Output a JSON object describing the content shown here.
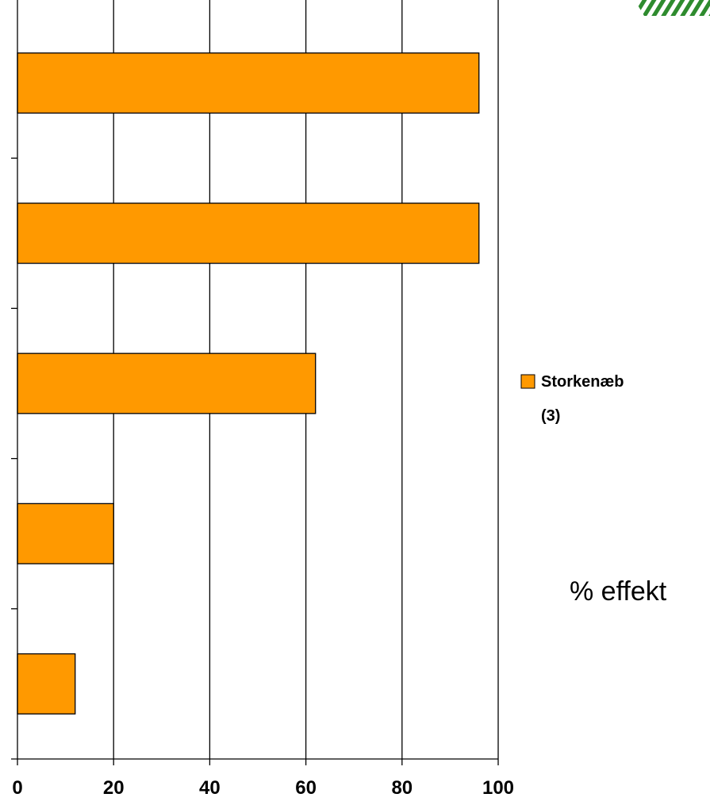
{
  "chart_data": {
    "type": "bar",
    "orientation": "horizontal",
    "categories": [
      "",
      "",
      "",
      "",
      ""
    ],
    "series": [
      {
        "name": "Storkenæb (3)",
        "values": [
          96,
          96,
          62,
          20,
          12
        ],
        "color": "#FF9900"
      }
    ],
    "xlabel": "% effekt",
    "ylabel": "",
    "xlim": [
      0,
      100
    ],
    "xticks": [
      "0",
      "20",
      "40",
      "60",
      "80",
      "100"
    ],
    "grid": "vertical",
    "legend_position": "right",
    "legend": {
      "lines": [
        "Storkenæb",
        "(3)"
      ]
    }
  },
  "colors": {
    "bar": "#FF9900",
    "logo": "#2E8B2E"
  }
}
